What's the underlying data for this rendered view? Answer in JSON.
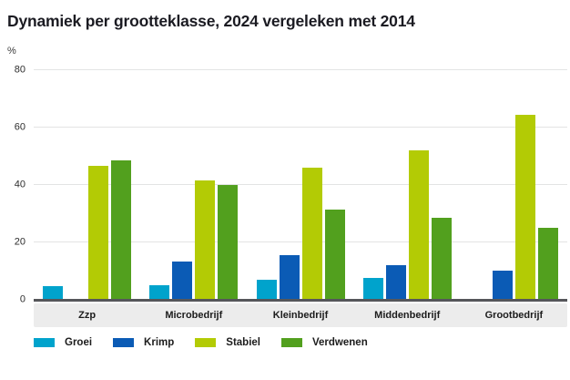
{
  "title": "Dynamiek per grootteklasse, 2024 vergeleken met 2014",
  "y_unit_label": "%",
  "chart_data": {
    "type": "bar",
    "title": "Dynamiek per grootteklasse, 2024 vergeleken met 2014",
    "ylabel": "%",
    "xlabel": "",
    "ylim": [
      0,
      80
    ],
    "yticks": [
      0,
      20,
      40,
      60,
      80
    ],
    "grid": true,
    "legend_position": "bottom",
    "categories": [
      "Zzp",
      "Microbedrijf",
      "Kleinbedrijf",
      "Middenbedrijf",
      "Grootbedrijf"
    ],
    "series": [
      {
        "name": "Groei",
        "color": "#00a3cc",
        "values": [
          4.7,
          5.0,
          7.0,
          7.5,
          0
        ]
      },
      {
        "name": "Krimp",
        "color": "#0b5bb5",
        "values": [
          0,
          13.4,
          15.5,
          12.0,
          10.3
        ]
      },
      {
        "name": "Stabiel",
        "color": "#b3cb05",
        "values": [
          46.6,
          41.6,
          46.0,
          52.0,
          64.5
        ]
      },
      {
        "name": "Verdwenen",
        "color": "#52a01e",
        "values": [
          48.7,
          40.0,
          31.5,
          28.5,
          25.2
        ]
      }
    ],
    "colors": {
      "gridline": "#e3e4e4",
      "baseline": "#55565a",
      "axis_band": "#ececec",
      "title_text": "#1b1b22"
    }
  }
}
